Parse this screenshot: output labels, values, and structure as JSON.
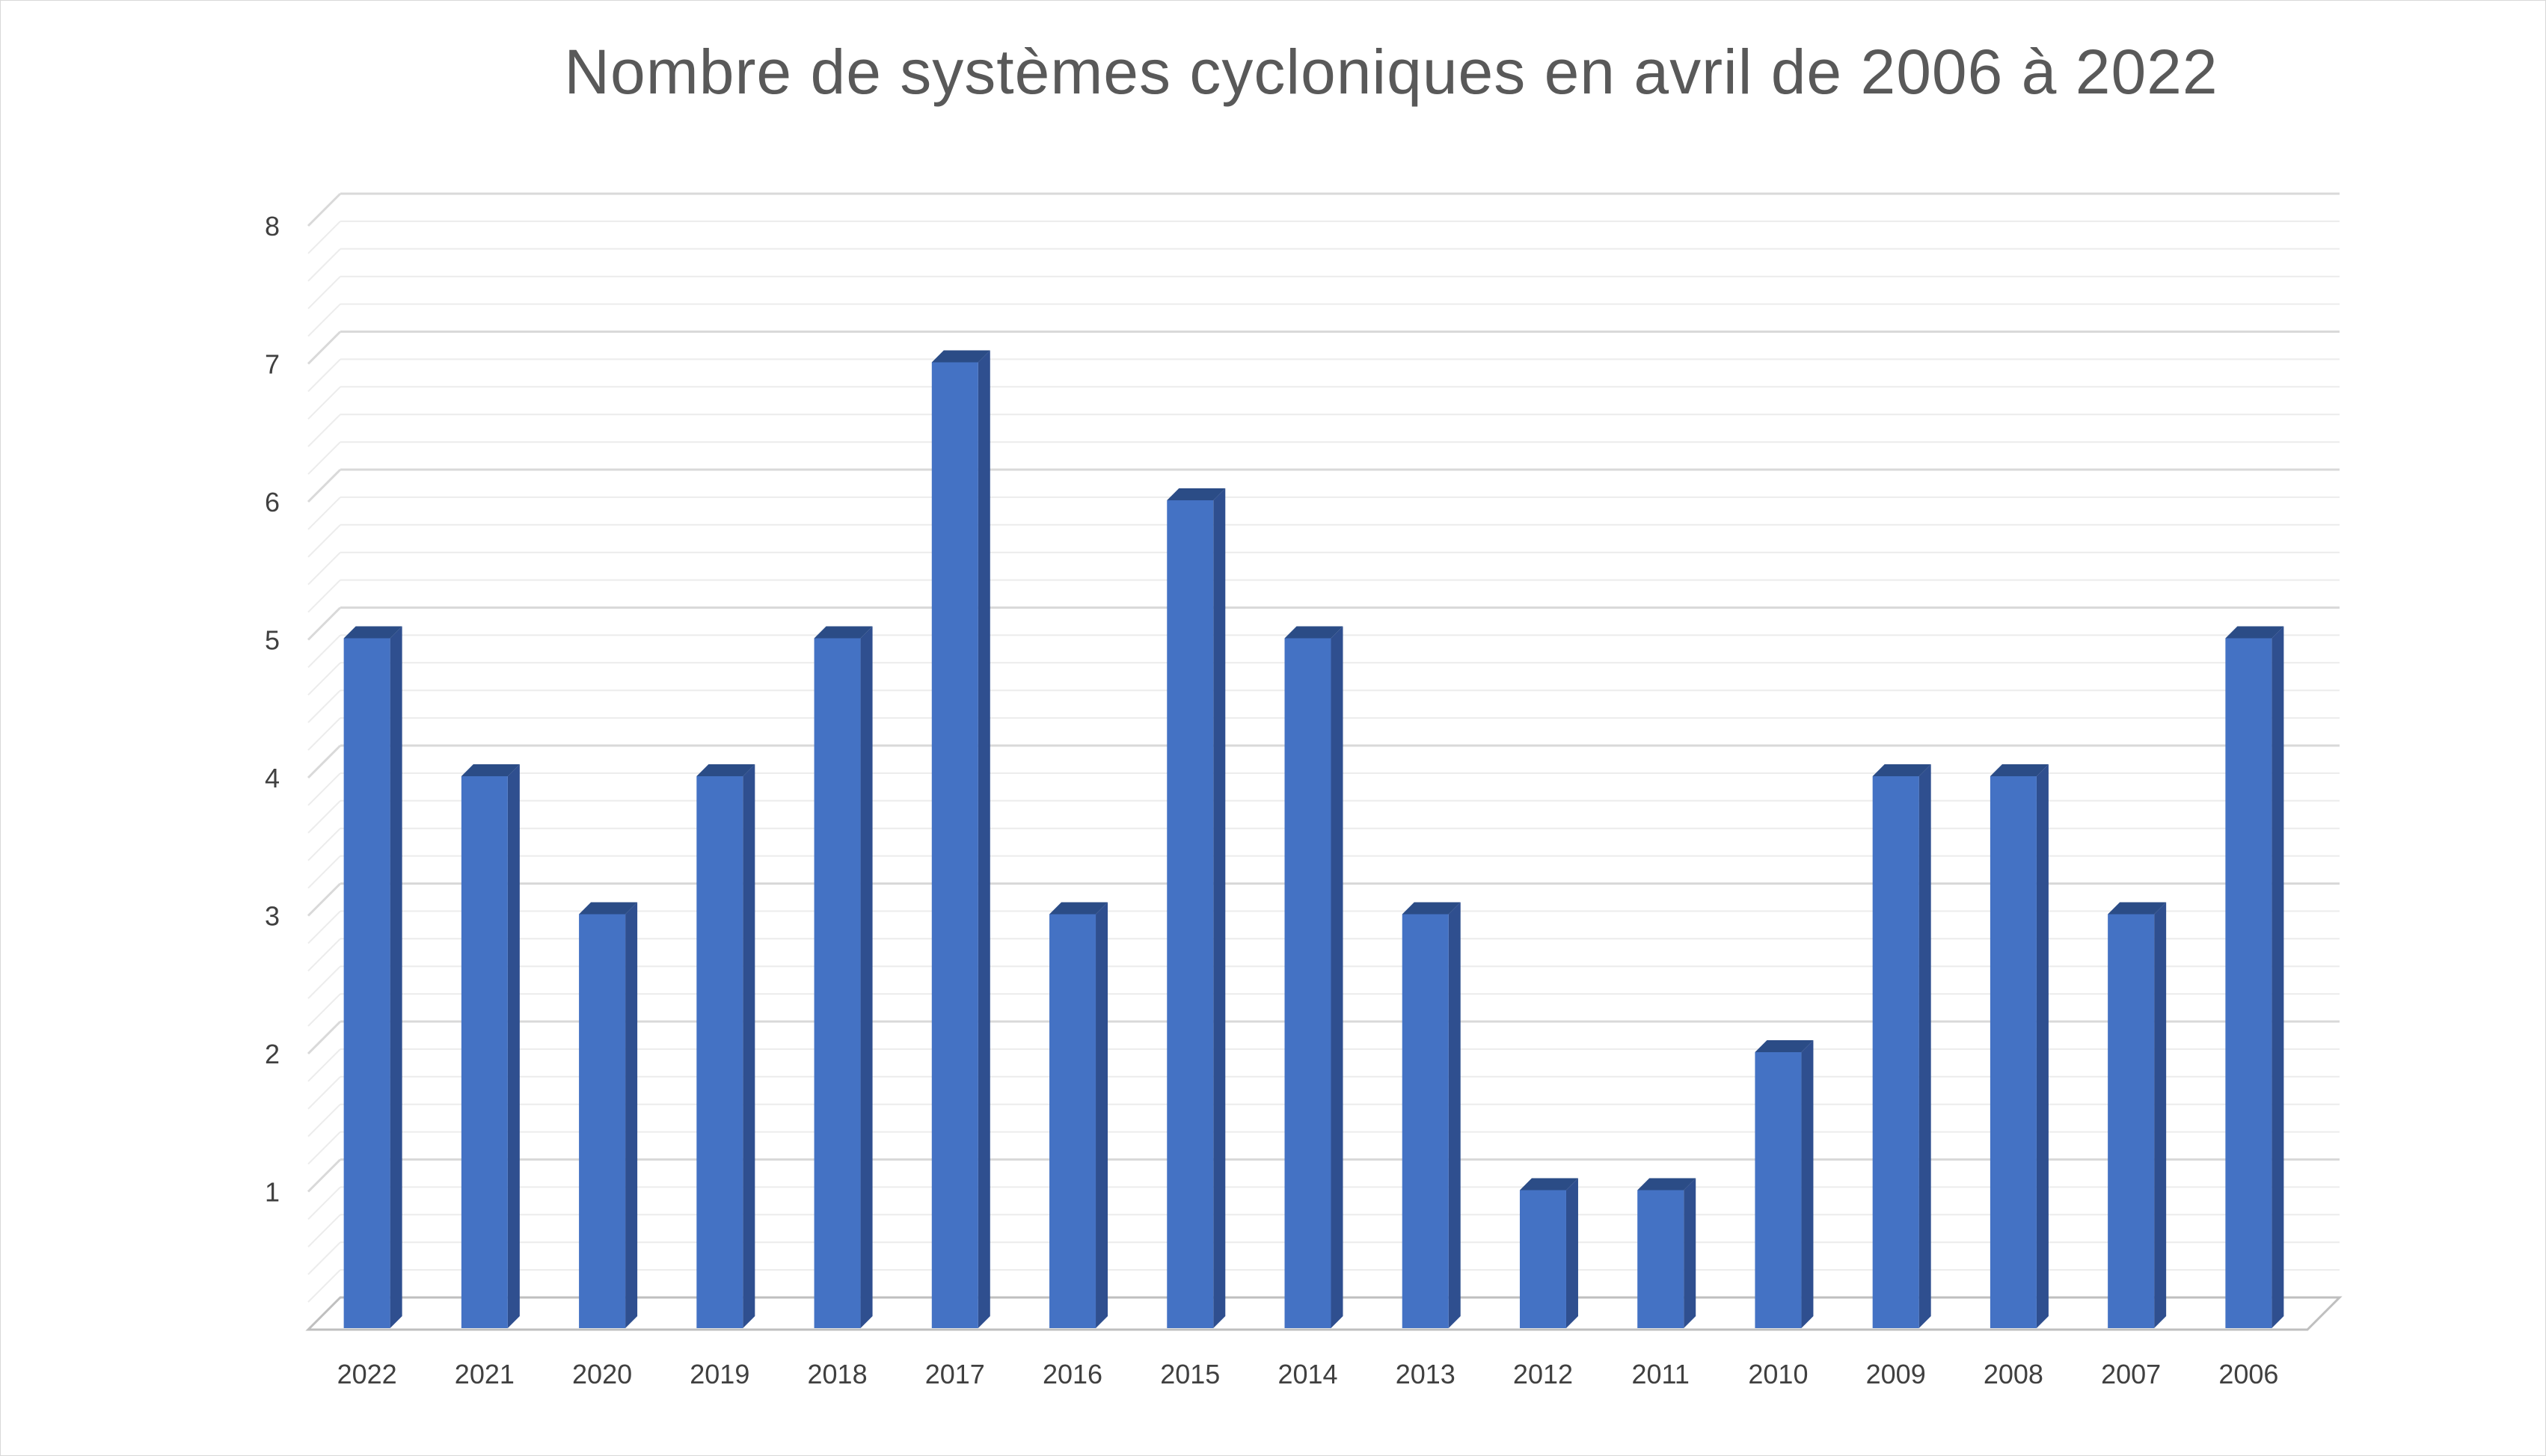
{
  "chart_data": {
    "type": "bar",
    "title": "Nombre de systèmes cycloniques en avril de 2006 à 2022",
    "xlabel": "",
    "ylabel": "",
    "categories": [
      "2022",
      "2021",
      "2020",
      "2019",
      "2018",
      "2017",
      "2016",
      "2015",
      "2014",
      "2013",
      "2012",
      "2011",
      "2010",
      "2009",
      "2008",
      "2007",
      "2006"
    ],
    "values": [
      5,
      4,
      3,
      4,
      5,
      7,
      3,
      6,
      5,
      3,
      1,
      1,
      2,
      4,
      4,
      3,
      5
    ],
    "ylim": [
      0,
      8
    ],
    "yticks": [
      "1",
      "2",
      "3",
      "4",
      "5",
      "6",
      "7",
      "8"
    ],
    "grid": true,
    "minor_grid": true,
    "legend": "none",
    "style": "3d-column",
    "colors": {
      "bar_front": "#4472C4",
      "bar_side": "#2F4F8F",
      "bar_top": "#2B4C86",
      "grid_major": "#d9d9d9",
      "grid_minor": "#ececec"
    }
  }
}
